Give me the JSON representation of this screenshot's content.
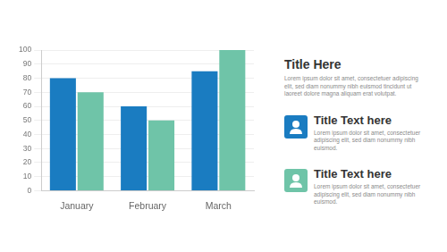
{
  "chart_data": {
    "type": "bar",
    "categories": [
      "January",
      "February",
      "March"
    ],
    "series": [
      {
        "color": "#1a7cc1",
        "values": [
          80,
          60,
          85
        ]
      },
      {
        "color": "#6fc4a8",
        "values": [
          70,
          50,
          100
        ]
      }
    ],
    "ylim": [
      0,
      100
    ],
    "yticks": [
      0,
      10,
      20,
      30,
      40,
      50,
      60,
      70,
      80,
      90,
      100
    ],
    "grid": true
  },
  "panel": {
    "title": "Title Here",
    "text": "Lorem ipsum dolor sit amet, consectetuer adipiscing elit, sed diam nonummy nibh euismod tincidunt ut laoreet dolore magna aliquam erat volutpat.",
    "items": [
      {
        "title": "Title Text here",
        "text": "Lorem ipsum dolor sit amet, consectetuer adipiscing elit, sed diam nonummy nibh euismod.",
        "color": "#1a7cc1"
      },
      {
        "title": "Title Text here",
        "text": "Lorem ipsum dolor sit amet, consectetuer adipiscing elit, sed diam nonummy nibh euismod.",
        "color": "#6fc4a8"
      }
    ]
  }
}
